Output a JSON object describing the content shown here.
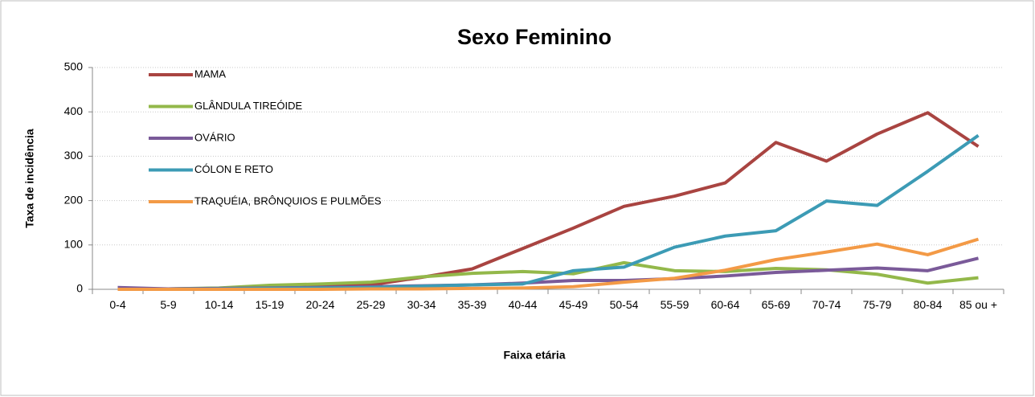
{
  "chart_data": {
    "type": "line",
    "title": "Sexo Feminino",
    "x_label": "Faixa etária",
    "y_label": "Taxa de incidência",
    "categories": [
      "0-4",
      "5-9",
      "10-14",
      "15-19",
      "20-24",
      "25-29",
      "30-34",
      "35-39",
      "40-44",
      "45-49",
      "50-54",
      "55-59",
      "60-64",
      "65-69",
      "70-74",
      "75-79",
      "80-84",
      "85 ou +"
    ],
    "series": [
      {
        "name": "MAMA",
        "color": "#a94441",
        "values": [
          1,
          1,
          2,
          4,
          6,
          10,
          27,
          46,
          92,
          138,
          187,
          210,
          240,
          331,
          289,
          350,
          398,
          322
        ]
      },
      {
        "name": "GLÂNDULA TIREÓIDE",
        "color": "#93b84a",
        "values": [
          1,
          1,
          3,
          9,
          12,
          16,
          28,
          36,
          40,
          35,
          60,
          42,
          40,
          47,
          44,
          34,
          14,
          26
        ]
      },
      {
        "name": "OVÁRIO",
        "color": "#7a5a99",
        "values": [
          4,
          1,
          2,
          3,
          4,
          6,
          8,
          10,
          14,
          20,
          20,
          24,
          30,
          38,
          43,
          48,
          42,
          70
        ]
      },
      {
        "name": "CÓLON E RETO",
        "color": "#3c9bb5",
        "values": [
          0,
          0,
          1,
          2,
          3,
          4,
          7,
          10,
          12,
          42,
          50,
          95,
          120,
          132,
          199,
          189,
          266,
          347
        ]
      },
      {
        "name": "TRAQUÉIA, BRÔNQUIOS E PULMÕES",
        "color": "#f39a46",
        "values": [
          0,
          0,
          0,
          0,
          0,
          1,
          1,
          2,
          3,
          6,
          16,
          25,
          43,
          67,
          84,
          102,
          78,
          113
        ]
      }
    ],
    "ylim": [
      0,
      500
    ],
    "yticks": [
      0,
      100,
      200,
      300,
      400,
      500
    ],
    "grid": true,
    "legend": "upper left"
  }
}
